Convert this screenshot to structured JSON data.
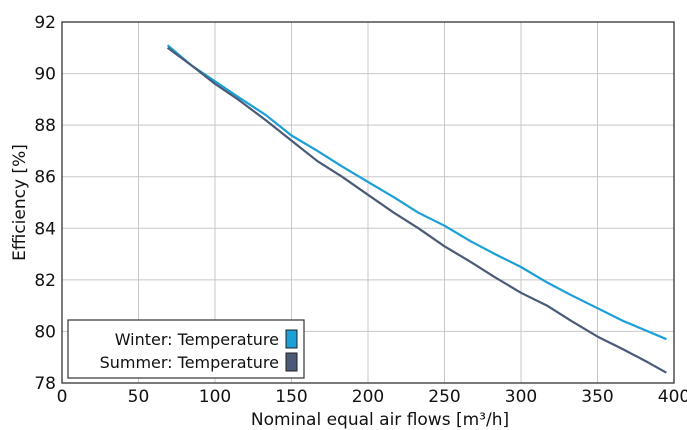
{
  "chart_data": {
    "type": "line",
    "xlabel": "Nominal equal air flows [m³/h]",
    "ylabel": "Efficiency [%]",
    "xlim": [
      0,
      400
    ],
    "ylim": [
      78,
      92
    ],
    "x_ticks": [
      0,
      50,
      100,
      150,
      200,
      250,
      300,
      350,
      400
    ],
    "y_ticks": [
      78,
      80,
      82,
      84,
      86,
      88,
      90,
      92
    ],
    "grid": true,
    "legend_position": "bottom-left",
    "series": [
      {
        "name": "Winter: Temperature",
        "color": "#1a9fd6",
        "x": [
          69,
          85,
          100,
          115,
          133,
          150,
          167,
          183,
          200,
          217,
          233,
          250,
          267,
          283,
          300,
          317,
          333,
          350,
          367,
          383,
          395
        ],
        "y": [
          91.1,
          90.3,
          89.7,
          89.1,
          88.4,
          87.6,
          87.0,
          86.4,
          85.8,
          85.2,
          84.6,
          84.1,
          83.5,
          83.0,
          82.5,
          81.9,
          81.4,
          80.9,
          80.4,
          80.0,
          79.7
        ]
      },
      {
        "name": "Summer: Temperature",
        "color": "#4a5b78",
        "x": [
          69,
          85,
          100,
          115,
          133,
          150,
          167,
          183,
          200,
          217,
          233,
          250,
          267,
          283,
          300,
          317,
          333,
          350,
          367,
          383,
          395
        ],
        "y": [
          91.0,
          90.3,
          89.6,
          89.0,
          88.2,
          87.4,
          86.6,
          86.0,
          85.3,
          84.6,
          84.0,
          83.3,
          82.7,
          82.1,
          81.5,
          81.0,
          80.4,
          79.8,
          79.3,
          78.8,
          78.4
        ]
      }
    ]
  }
}
